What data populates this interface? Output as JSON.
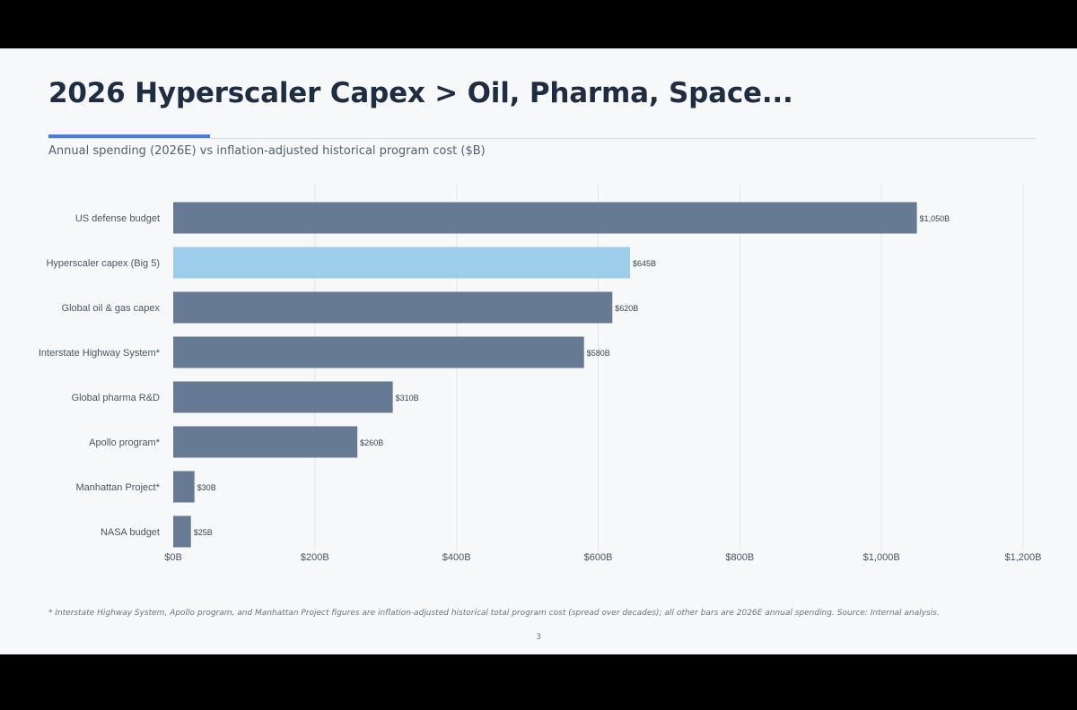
{
  "slide": {
    "title": "2026 Hyperscaler Capex > Oil, Pharma, Space...",
    "subtitle": "Annual spending (2026E) vs inflation-adjusted historical program cost ($B)",
    "footnote": "* Interstate Highway System, Apollo program, and Manhattan Project figures are inflation-adjusted historical total program cost (spread over decades); all other bars are 2026E annual spending. Source: Internal analysis.",
    "page_number": "3"
  },
  "colors": {
    "default_bar": "#667a93",
    "highlight_bar": "#9ccdea",
    "title": "#1f2d42",
    "accent": "#4f7bd6",
    "gridline": "#e3e6eb"
  },
  "chart_data": {
    "type": "bar",
    "orientation": "horizontal",
    "title": "",
    "xlabel": "",
    "ylabel": "",
    "xlim": [
      0,
      1200
    ],
    "grid": true,
    "categories": [
      "US defense budget",
      "Hyperscaler capex (Big 5)",
      "Global oil & gas capex",
      "Interstate Highway System*",
      "Global pharma R&D",
      "Apollo program*",
      "Manhattan Project*",
      "NASA budget"
    ],
    "values": [
      1050,
      645,
      620,
      580,
      310,
      260,
      30,
      25
    ],
    "data_labels": [
      "$1,050B",
      "$645B",
      "$620B",
      "$580B",
      "$310B",
      "$260B",
      "$30B",
      "$25B"
    ],
    "highlight_index": 1,
    "x_ticks": [
      0,
      200,
      400,
      600,
      800,
      1000,
      1200
    ],
    "x_tick_labels": [
      "$0B",
      "$200B",
      "$400B",
      "$600B",
      "$800B",
      "$1,000B",
      "$1,200B"
    ]
  }
}
